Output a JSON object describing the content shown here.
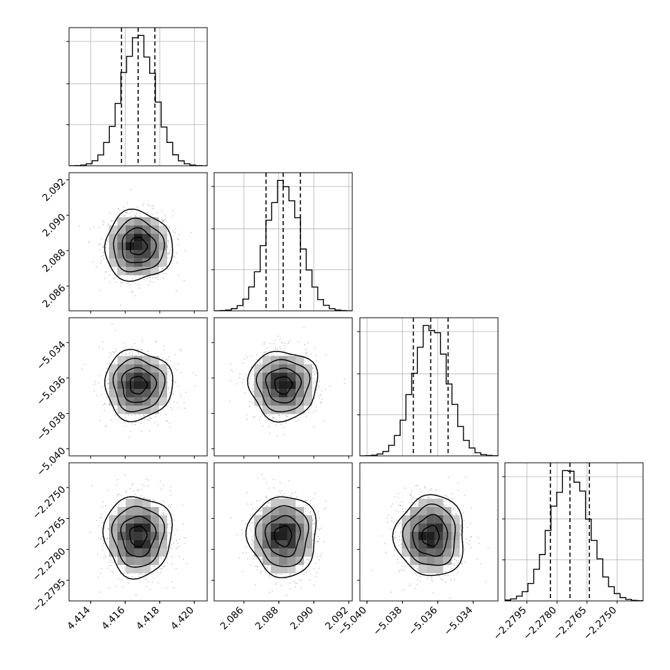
{
  "chart_data": {
    "type": "corner",
    "grid": true,
    "parameters": [
      {
        "center": 4.41675,
        "sigma": 0.00098,
        "quantiles": [
          4.41578,
          4.41675,
          4.41772
        ],
        "range": [
          4.41275,
          4.42075
        ],
        "ticks": [
          4.414,
          4.416,
          4.418,
          4.42
        ],
        "tick_labels": [
          "4.414",
          "4.416",
          "4.418",
          "4.420"
        ]
      },
      {
        "center": 2.08825,
        "sigma": 0.00098,
        "quantiles": [
          2.08727,
          2.08825,
          2.08923
        ],
        "range": [
          2.0843,
          2.0922
        ],
        "ticks": [
          2.086,
          2.088,
          2.09,
          2.092
        ],
        "tick_labels": [
          "2.086",
          "2.088",
          "2.090",
          "2.092"
        ]
      },
      {
        "center": -5.0364,
        "sigma": 0.00098,
        "quantiles": [
          -5.03738,
          -5.0364,
          -5.03542
        ],
        "range": [
          -5.0404,
          -5.0326
        ],
        "ticks": [
          -5.04,
          -5.038,
          -5.036,
          -5.034
        ],
        "tick_labels": [
          "−5.040",
          "−5.038",
          "−5.036",
          "−5.034"
        ]
      },
      {
        "center": -2.27735,
        "sigma": 0.00098,
        "quantiles": [
          -2.27833,
          -2.27735,
          -2.27638
        ],
        "range": [
          -2.2806,
          -2.2737
        ],
        "ticks": [
          -2.2795,
          -2.278,
          -2.2765,
          -2.275
        ],
        "tick_labels": [
          "−2.2795",
          "−2.2780",
          "−2.2765",
          "−2.2750"
        ]
      }
    ],
    "ylim_scale": {
      "2.092": 2.0922,
      "note": ""
    },
    "quantile_levels": [
      0.16,
      0.5,
      0.84
    ],
    "contour_levels_sigma": [
      0.5,
      1.0,
      1.5,
      2.0
    ],
    "colors": {
      "line": "#000000",
      "grid": "#b0b0b0",
      "scatter": "#9a9a9a"
    }
  }
}
